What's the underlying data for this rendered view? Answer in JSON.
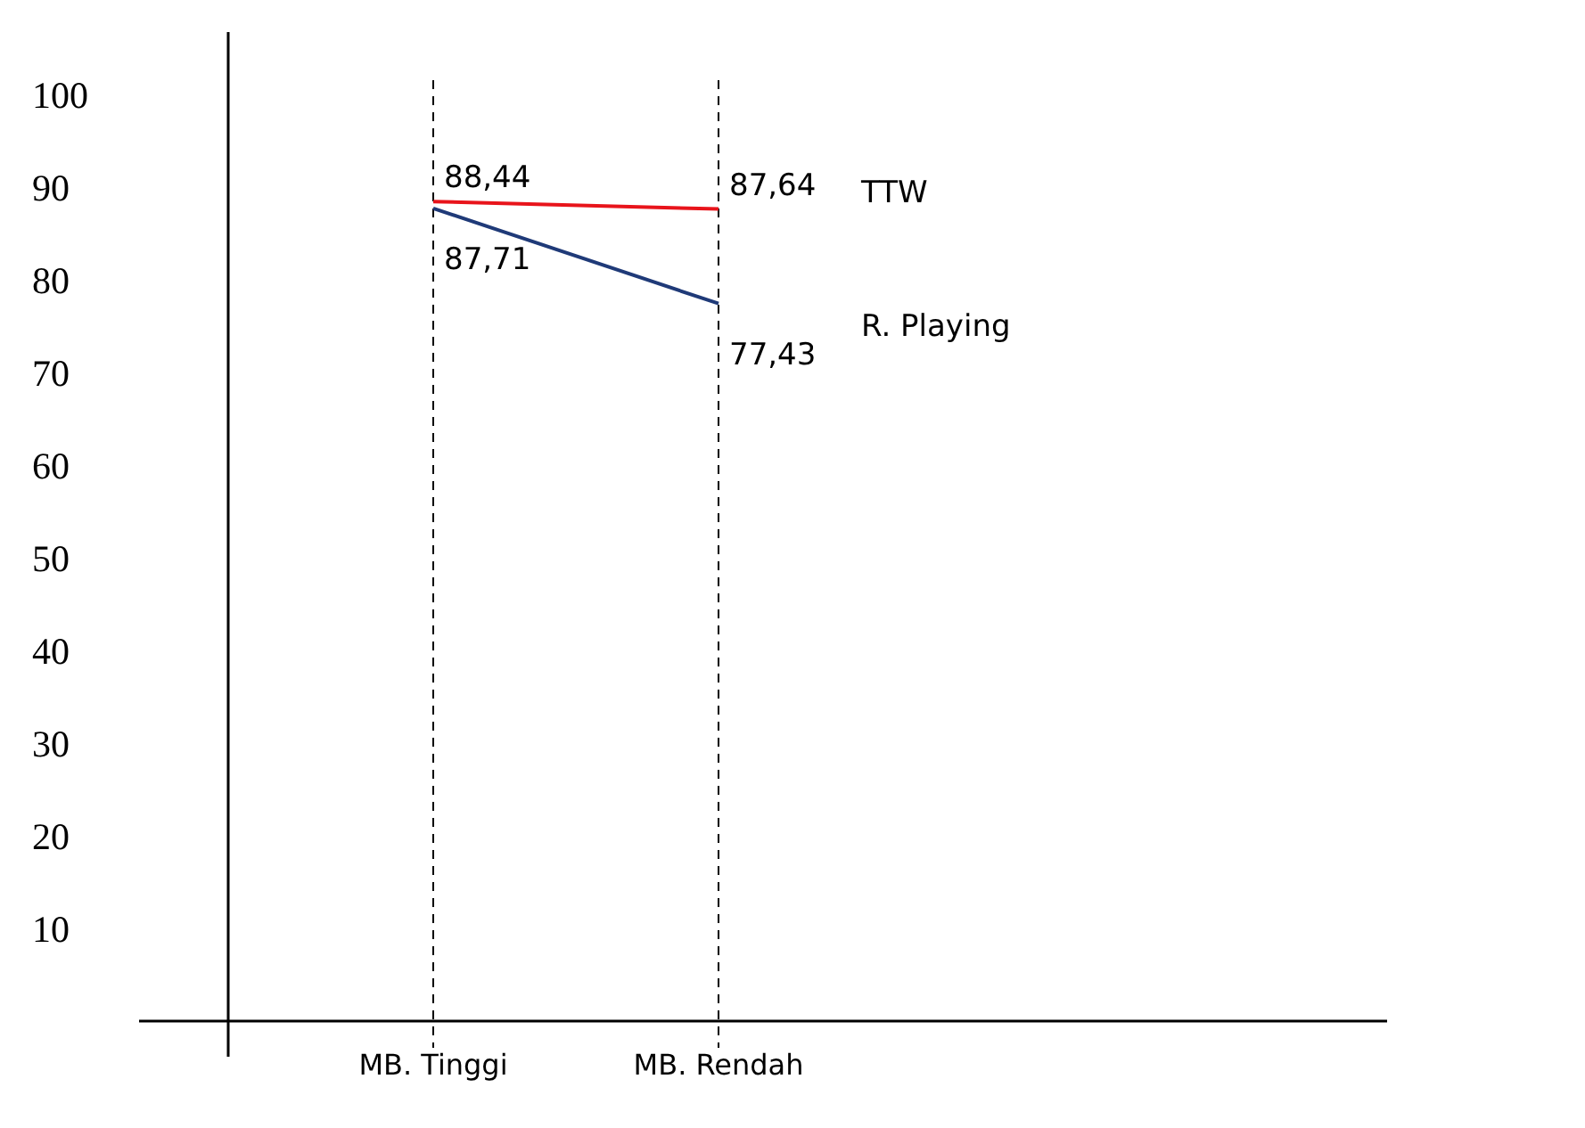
{
  "chart_data": {
    "type": "line",
    "categories": [
      "MB. Tinggi",
      "MB. Rendah"
    ],
    "series": [
      {
        "name": "TTW",
        "color": "#e8141b",
        "values": [
          88.44,
          87.64
        ],
        "value_labels": [
          "88,44",
          "87,64"
        ]
      },
      {
        "name": "R. Playing",
        "color": "#1f3a78",
        "values": [
          87.71,
          77.43
        ],
        "value_labels": [
          "87,71",
          "77,43"
        ]
      }
    ],
    "ylim": [
      0,
      100
    ],
    "yticks": [
      10,
      20,
      30,
      40,
      50,
      60,
      70,
      80,
      90,
      100
    ],
    "grid": "x",
    "legend": false,
    "marker": "none",
    "line_style": "solid"
  }
}
